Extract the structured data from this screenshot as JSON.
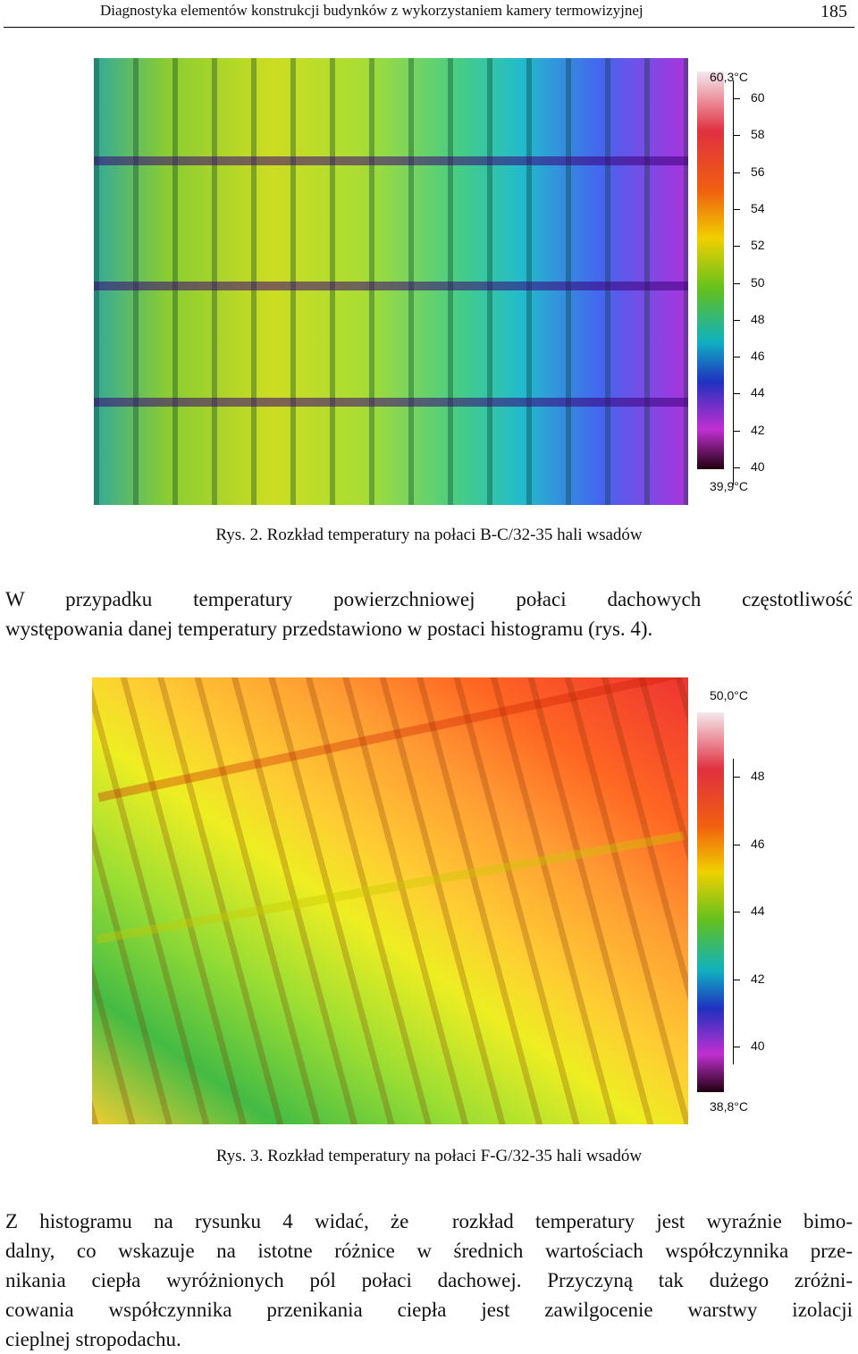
{
  "header": {
    "title": "Diagnostyka elementów konstrukcji budynków z wykorzystaniem kamery termowizyjnej",
    "page": "185"
  },
  "figure1": {
    "scale": {
      "max": "60,3°C",
      "ticks": [
        "60",
        "58",
        "56",
        "54",
        "52",
        "50",
        "48",
        "46",
        "44",
        "42",
        "40"
      ],
      "min": "39,9°C"
    },
    "caption": "Rys. 2. Rozkład temperatury na połaci B-C/32-35 hali wsadów"
  },
  "paragraph1": {
    "lines": [
      "W przypadku temperatury powierzchniowej połaci dachowych częstotliwość",
      "występowania danej temperatury przedstawiono w postaci histogramu (rys. 4)."
    ]
  },
  "figure2": {
    "scale": {
      "max": "50,0°C",
      "ticks": [
        "48",
        "46",
        "44",
        "42",
        "40"
      ],
      "min": "38,8°C"
    },
    "caption": "Rys. 3. Rozkład temperatury na połaci F-G/32-35 hali wsadów"
  },
  "paragraph2": {
    "lines": [
      "Z histogramu na rysunku 4 widać, że  rozkład temperatury jest wyraźnie bimo-",
      "dalny, co wskazuje na istotne różnice w średnich wartościach współczynnika prze-",
      "nikania ciepła wyróżnionych pól połaci dachowej. Przyczyną tak dużego zróżni-",
      "cowania współczynnika przenikania ciepła jest zawilgocenie warstwy izolacji",
      "cieplnej stropodachu."
    ]
  }
}
